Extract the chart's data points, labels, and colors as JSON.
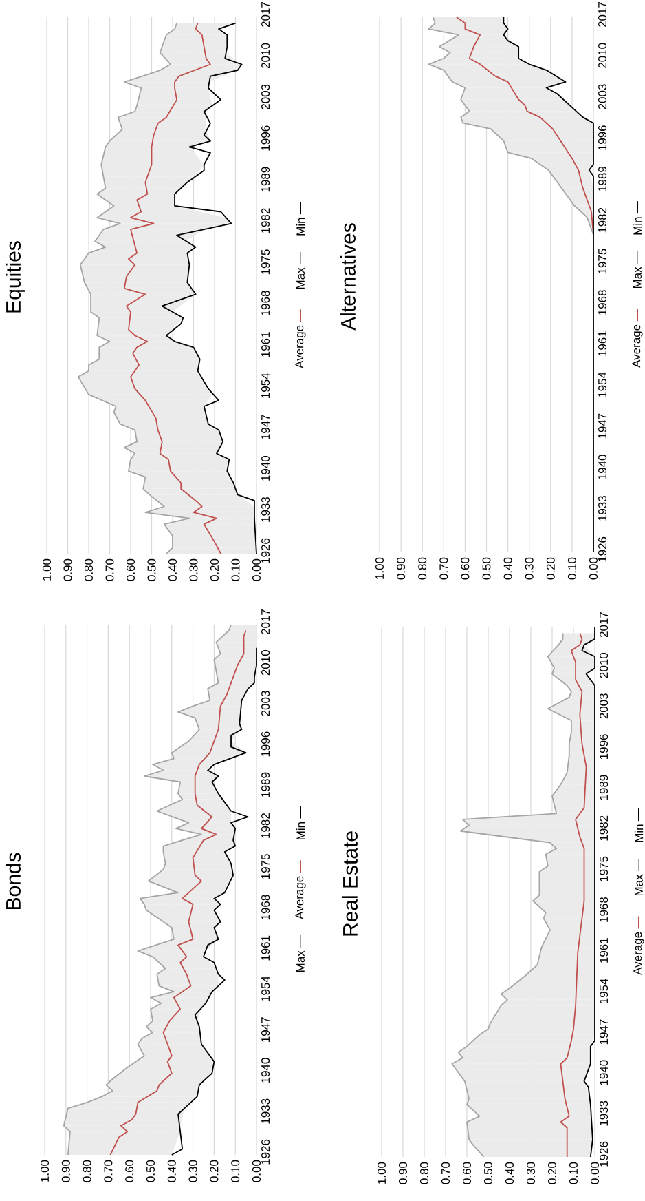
{
  "chart_data": [
    {
      "type": "line",
      "title": "Bonds",
      "orientation": "horizontal",
      "ylim": [
        1926,
        2017
      ],
      "yticks": [
        1926,
        1933,
        1940,
        1947,
        1954,
        1961,
        1968,
        1975,
        1982,
        1989,
        1996,
        2003,
        2010,
        2017
      ],
      "xlim": [
        1,
        0
      ],
      "xticks": [
        {
          "value": 1,
          "label": "1.00"
        },
        {
          "value": 0.9,
          "label": "0.90"
        },
        {
          "value": 0.8,
          "label": "0.80"
        },
        {
          "value": 0.7,
          "label": "0.70"
        },
        {
          "value": 0.6,
          "label": "0.60"
        },
        {
          "value": 0.5,
          "label": "0.50"
        },
        {
          "value": 0.4,
          "label": "0.40"
        },
        {
          "value": 0.3,
          "label": "0.30"
        },
        {
          "value": 0.2,
          "label": "0.20"
        },
        {
          "value": 0.1,
          "label": "0.10"
        },
        {
          "value": 0,
          "label": "0.00"
        }
      ],
      "grid": "x",
      "legend": "right",
      "series": [
        {
          "name": "Max",
          "color": "#a5a5a5",
          "x": [
            1926,
            1930,
            1931,
            1934,
            1935,
            1936,
            1937,
            1938,
            1939,
            1941,
            1943,
            1945,
            1946,
            1947,
            1948,
            1949,
            1951,
            1952,
            1953,
            1954,
            1955,
            1957,
            1958,
            1960,
            1961,
            1963,
            1965,
            1966,
            1968,
            1969,
            1970,
            1971,
            1973,
            1975,
            1976,
            1978,
            1979,
            1981,
            1982,
            1983,
            1985,
            1987,
            1988,
            1990,
            1991,
            1992,
            1993,
            1994,
            1995,
            1997,
            1999,
            2001,
            2002,
            2003,
            2004,
            2006,
            2007,
            2011,
            2012,
            2014,
            2016,
            2017
          ],
          "values": [
            0.89,
            0.88,
            0.91,
            0.89,
            0.8,
            0.73,
            0.68,
            0.71,
            0.68,
            0.61,
            0.53,
            0.56,
            0.54,
            0.49,
            0.52,
            0.49,
            0.5,
            0.45,
            0.5,
            0.39,
            0.46,
            0.47,
            0.43,
            0.49,
            0.56,
            0.39,
            0.4,
            0.44,
            0.52,
            0.53,
            0.55,
            0.37,
            0.51,
            0.44,
            0.43,
            0.44,
            0.44,
            0.26,
            0.38,
            0.32,
            0.47,
            0.35,
            0.37,
            0.36,
            0.53,
            0.44,
            0.49,
            0.39,
            0.4,
            0.32,
            0.27,
            0.29,
            0.37,
            0.3,
            0.22,
            0.23,
            0.18,
            0.2,
            0.17,
            0.19,
            0.13,
            0.12
          ],
          "upper": [
            0.89,
            0.88,
            0.91,
            0.89,
            0.8,
            0.73,
            0.68,
            0.71,
            0.68,
            0.61,
            0.53,
            0.56,
            0.54,
            0.49,
            0.52,
            0.49,
            0.5,
            0.45,
            0.5,
            0.39,
            0.46,
            0.47,
            0.43,
            0.49,
            0.56,
            0.39,
            0.4,
            0.44,
            0.52,
            0.53,
            0.55,
            0.37,
            0.51,
            0.44,
            0.43,
            0.44,
            0.44,
            0.26,
            0.38,
            0.32,
            0.47,
            0.35,
            0.37,
            0.36,
            0.53,
            0.44,
            0.49,
            0.39,
            0.4,
            0.32,
            0.27,
            0.29,
            0.37,
            0.3,
            0.22,
            0.23,
            0.18,
            0.2,
            0.17,
            0.19,
            0.13,
            0.12
          ],
          "lower": [
            0.4,
            0.36,
            0.36,
            0.34,
            0.31,
            0.28,
            0.28,
            0.27,
            0.24,
            0.2,
            0.22,
            0.26,
            0.26,
            0.27,
            0.27,
            0.28,
            0.26,
            0.24,
            0.22,
            0.21,
            0.18,
            0.18,
            0.19,
            0.25,
            0.24,
            0.18,
            0.2,
            0.17,
            0.2,
            0.17,
            0.2,
            0.15,
            0.12,
            0.11,
            0.12,
            0.15,
            0.1,
            0.1,
            0.1,
            0.12,
            0.12,
            0.16,
            0.18,
            0.21,
            0.18,
            0.23,
            0.2,
            0.12,
            0.05,
            0.12,
            0.07,
            0.08,
            0.08,
            0.07,
            0.07,
            0.04,
            0.01,
            0,
            0,
            0,
            0,
            0
          ]
        },
        {
          "name": "Average",
          "color": "#c0504d",
          "x": [
            1926,
            1929,
            1930,
            1931,
            1932,
            1933,
            1935,
            1937,
            1938,
            1940,
            1942,
            1943,
            1945,
            1947,
            1949,
            1951,
            1953,
            1955,
            1957,
            1959,
            1960,
            1962,
            1963,
            1966,
            1969,
            1970,
            1973,
            1974,
            1977,
            1980,
            1981,
            1982,
            1984,
            1986,
            1988,
            1991,
            1993,
            1995,
            1999,
            2003,
            2005,
            2008,
            2010,
            2012,
            2015,
            2016
          ],
          "values": [
            0.69,
            0.65,
            0.61,
            0.64,
            0.59,
            0.57,
            0.56,
            0.47,
            0.46,
            0.4,
            0.42,
            0.4,
            0.42,
            0.44,
            0.41,
            0.36,
            0.39,
            0.31,
            0.33,
            0.36,
            0.33,
            0.37,
            0.3,
            0.32,
            0.3,
            0.35,
            0.26,
            0.29,
            0.3,
            0.25,
            0.19,
            0.26,
            0.21,
            0.28,
            0.29,
            0.29,
            0.27,
            0.22,
            0.18,
            0.17,
            0.14,
            0.11,
            0.09,
            0.06,
            0.06,
            0.05
          ]
        },
        {
          "name": "Min",
          "color": "#000000",
          "x": [
            1926,
            1927,
            1930,
            1933,
            1934,
            1936,
            1938,
            1940,
            1942,
            1945,
            1948,
            1950,
            1952,
            1954,
            1956,
            1957,
            1959,
            1960,
            1962,
            1963,
            1965,
            1966,
            1968,
            1969,
            1970,
            1971,
            1974,
            1976,
            1978,
            1979,
            1980,
            1982,
            1983,
            1984,
            1985,
            1988,
            1990,
            1991,
            1992,
            1993,
            1995,
            1996,
            1998,
            1999,
            2000,
            2004,
            2006,
            2007,
            2008,
            2010,
            2013
          ],
          "values": [
            0.4,
            0.35,
            0.36,
            0.37,
            0.34,
            0.28,
            0.27,
            0.21,
            0.2,
            0.26,
            0.27,
            0.29,
            0.24,
            0.21,
            0.15,
            0.18,
            0.2,
            0.25,
            0.23,
            0.18,
            0.2,
            0.17,
            0.2,
            0.17,
            0.2,
            0.15,
            0.11,
            0.12,
            0.15,
            0.1,
            0.11,
            0.1,
            0.12,
            0.04,
            0.12,
            0.18,
            0.21,
            0.18,
            0.23,
            0.2,
            0.05,
            0.12,
            0.12,
            0.07,
            0.08,
            0.07,
            0.04,
            0.01,
            0.01,
            0,
            0
          ]
        }
      ]
    },
    {
      "type": "line",
      "title": "Equities",
      "orientation": "horizontal",
      "ylim": [
        1926,
        2017
      ],
      "yticks": [
        1926,
        1933,
        1940,
        1947,
        1954,
        1961,
        1968,
        1975,
        1982,
        1989,
        1996,
        2003,
        2010,
        2017
      ],
      "xlim": [
        1,
        0
      ],
      "xticks": [
        {
          "value": 1,
          "label": "1.00"
        },
        {
          "value": 0.9,
          "label": "0.90"
        },
        {
          "value": 0.8,
          "label": "0.80"
        },
        {
          "value": 0.7,
          "label": "0.70"
        },
        {
          "value": 0.6,
          "label": "0.60"
        },
        {
          "value": 0.5,
          "label": "0.50"
        },
        {
          "value": 0.4,
          "label": "0.40"
        },
        {
          "value": 0.3,
          "label": "0.30"
        },
        {
          "value": 0.2,
          "label": "0.20"
        },
        {
          "value": 0.1,
          "label": "0.10"
        },
        {
          "value": 0,
          "label": "0.00"
        }
      ],
      "grid": "x",
      "legend": "right",
      "series": [
        {
          "name": "Average",
          "color": "#c0504d",
          "x": [
            1926,
            1928,
            1931,
            1932,
            1933,
            1934,
            1935,
            1937,
            1938,
            1940,
            1942,
            1943,
            1945,
            1947,
            1949,
            1952,
            1954,
            1956,
            1958,
            1960,
            1961,
            1962,
            1963,
            1964,
            1967,
            1968,
            1970,
            1971,
            1973,
            1975,
            1976,
            1977,
            1981,
            1982,
            1983,
            1984,
            1986,
            1987,
            1989,
            1992,
            1995,
            1997,
            1999,
            2000,
            2003,
            2005,
            2006,
            2007,
            2009,
            2010,
            2012,
            2014,
            2015,
            2016
          ],
          "values": [
            0.17,
            0.2,
            0.25,
            0.19,
            0.3,
            0.26,
            0.29,
            0.36,
            0.36,
            0.41,
            0.42,
            0.46,
            0.45,
            0.47,
            0.48,
            0.53,
            0.58,
            0.6,
            0.56,
            0.59,
            0.57,
            0.52,
            0.58,
            0.61,
            0.6,
            0.62,
            0.53,
            0.63,
            0.62,
            0.58,
            0.61,
            0.57,
            0.6,
            0.49,
            0.6,
            0.55,
            0.57,
            0.52,
            0.53,
            0.5,
            0.5,
            0.49,
            0.47,
            0.43,
            0.38,
            0.39,
            0.39,
            0.37,
            0.22,
            0.24,
            0.25,
            0.26,
            0.29,
            0.28
          ]
        },
        {
          "name": "Max",
          "color": "#a5a5a5",
          "x": [
            1926,
            1927,
            1929,
            1931,
            1932,
            1933,
            1934,
            1936,
            1937,
            1939,
            1940,
            1942,
            1943,
            1944,
            1945,
            1947,
            1948,
            1950,
            1951,
            1953,
            1956,
            1957,
            1958,
            1959,
            1961,
            1962,
            1963,
            1966,
            1967,
            1970,
            1972,
            1975,
            1977,
            1978,
            1979,
            1981,
            1982,
            1983,
            1985,
            1987,
            1988,
            1990,
            1992,
            1995,
            1996,
            1998,
            2000,
            2001,
            2002,
            2005,
            2006,
            2008,
            2009,
            2011,
            2013,
            2014,
            2015,
            2016
          ],
          "values": [
            0.43,
            0.4,
            0.4,
            0.44,
            0.32,
            0.53,
            0.44,
            0.51,
            0.54,
            0.53,
            0.61,
            0.6,
            0.58,
            0.63,
            0.57,
            0.58,
            0.65,
            0.68,
            0.67,
            0.8,
            0.85,
            0.8,
            0.8,
            0.75,
            0.75,
            0.7,
            0.76,
            0.75,
            0.79,
            0.79,
            0.82,
            0.84,
            0.8,
            0.72,
            0.77,
            0.73,
            0.65,
            0.76,
            0.68,
            0.76,
            0.72,
            0.73,
            0.74,
            0.72,
            0.7,
            0.64,
            0.66,
            0.58,
            0.57,
            0.55,
            0.63,
            0.46,
            0.41,
            0.46,
            0.44,
            0.43,
            0.39,
            0.38
          ],
          "upper": [
            0.43,
            0.4,
            0.4,
            0.44,
            0.32,
            0.53,
            0.44,
            0.51,
            0.54,
            0.53,
            0.61,
            0.6,
            0.58,
            0.63,
            0.57,
            0.58,
            0.65,
            0.68,
            0.67,
            0.8,
            0.85,
            0.8,
            0.8,
            0.75,
            0.75,
            0.7,
            0.76,
            0.75,
            0.79,
            0.79,
            0.82,
            0.84,
            0.8,
            0.72,
            0.77,
            0.73,
            0.65,
            0.76,
            0.68,
            0.76,
            0.72,
            0.73,
            0.74,
            0.72,
            0.7,
            0.64,
            0.66,
            0.58,
            0.57,
            0.55,
            0.63,
            0.46,
            0.41,
            0.46,
            0.44,
            0.43,
            0.39,
            0.38
          ],
          "lower": [
            0,
            0,
            0,
            0.01,
            0.01,
            0.01,
            0.01,
            0.09,
            0.1,
            0.13,
            0.14,
            0.13,
            0.19,
            0.18,
            0.16,
            0.18,
            0.23,
            0.24,
            0.25,
            0.21,
            0.26,
            0.28,
            0.28,
            0.27,
            0.3,
            0.39,
            0.43,
            0.35,
            0.4,
            0.29,
            0.33,
            0.32,
            0.33,
            0.29,
            0.34,
            0.25,
            0.12,
            0.15,
            0.39,
            0.39,
            0.36,
            0.29,
            0.25,
            0.32,
            0.22,
            0.24,
            0.24,
            0.25,
            0.21,
            0.23,
            0.23,
            0.09,
            0.07,
            0.15,
            0.14,
            0.14,
            0.18,
            0.1
          ]
        },
        {
          "name": "Min",
          "color": "#000000",
          "x": [
            1926,
            1932,
            1935,
            1936,
            1938,
            1940,
            1942,
            1943,
            1945,
            1947,
            1948,
            1951,
            1952,
            1954,
            1957,
            1959,
            1961,
            1962,
            1963,
            1965,
            1966,
            1968,
            1970,
            1972,
            1975,
            1977,
            1978,
            1980,
            1982,
            1984,
            1985,
            1987,
            1989,
            1991,
            1992,
            1994,
            1995,
            1996,
            1997,
            1999,
            2001,
            2003,
            2005,
            2007,
            2008,
            2009,
            2010,
            2012,
            2014,
            2015,
            2016
          ],
          "values": [
            0,
            0.01,
            0.01,
            0.09,
            0.11,
            0.14,
            0.13,
            0.19,
            0.16,
            0.18,
            0.23,
            0.25,
            0.18,
            0.23,
            0.28,
            0.27,
            0.3,
            0.39,
            0.43,
            0.36,
            0.35,
            0.45,
            0.29,
            0.33,
            0.32,
            0.33,
            0.29,
            0.38,
            0.12,
            0.17,
            0.39,
            0.39,
            0.33,
            0.25,
            0.25,
            0.22,
            0.32,
            0.22,
            0.25,
            0.22,
            0.25,
            0.17,
            0.23,
            0.22,
            0.09,
            0.07,
            0.15,
            0.14,
            0.14,
            0.18,
            0.1
          ]
        }
      ]
    },
    {
      "type": "line",
      "title": "Real Estate",
      "orientation": "horizontal",
      "ylim": [
        1926,
        2017
      ],
      "yticks": [
        1926,
        1933,
        1940,
        1947,
        1954,
        1961,
        1968,
        1975,
        1982,
        1989,
        1996,
        2003,
        2010,
        2017
      ],
      "xlim": [
        1,
        0
      ],
      "xticks": [
        {
          "value": 1,
          "label": "1.00"
        },
        {
          "value": 0.9,
          "label": "0.90"
        },
        {
          "value": 0.8,
          "label": "0.80"
        },
        {
          "value": 0.7,
          "label": "0.70"
        },
        {
          "value": 0.6,
          "label": "0.60"
        },
        {
          "value": 0.5,
          "label": "0.50"
        },
        {
          "value": 0.4,
          "label": "0.40"
        },
        {
          "value": 0.3,
          "label": "0.30"
        },
        {
          "value": 0.2,
          "label": "0.20"
        },
        {
          "value": 0.1,
          "label": "0.10"
        },
        {
          "value": 0,
          "label": "0.00"
        }
      ],
      "grid": "x",
      "legend": "right",
      "series": [
        {
          "name": "Average",
          "color": "#c0504d",
          "x": [
            1926,
            1931,
            1932,
            1933,
            1936,
            1939,
            1942,
            1943,
            1946,
            1948,
            1952,
            1961,
            1970,
            1979,
            1981,
            1984,
            1986,
            1993,
            1997,
            2002,
            2006,
            2008,
            2011,
            2013,
            2014,
            2015,
            2016
          ],
          "values": [
            0.13,
            0.13,
            0.16,
            0.12,
            0.14,
            0.15,
            0.16,
            0.13,
            0.11,
            0.1,
            0.09,
            0.08,
            0.05,
            0.05,
            0.07,
            0.09,
            0.05,
            0.04,
            0.06,
            0.07,
            0.06,
            0.09,
            0.09,
            0.11,
            0.07,
            0.06,
            0.07
          ]
        },
        {
          "name": "Max",
          "color": "#a5a5a5",
          "x": [
            1926,
            1928,
            1929,
            1932,
            1933,
            1935,
            1936,
            1939,
            1941,
            1942,
            1943,
            1944,
            1945,
            1947,
            1948,
            1949,
            1952,
            1953,
            1954,
            1955,
            1957,
            1959,
            1962,
            1965,
            1967,
            1968,
            1970,
            1971,
            1975,
            1976,
            1978,
            1979,
            1980,
            1982,
            1983,
            1984,
            1985,
            1988,
            1990,
            1992,
            1995,
            1997,
            1999,
            2001,
            2003,
            2005,
            2006,
            2007,
            2009,
            2010,
            2012,
            2014,
            2015,
            2016
          ],
          "values": [
            0.52,
            0.57,
            0.59,
            0.6,
            0.54,
            0.6,
            0.59,
            0.61,
            0.65,
            0.67,
            0.62,
            0.64,
            0.6,
            0.54,
            0.5,
            0.49,
            0.44,
            0.41,
            0.44,
            0.4,
            0.33,
            0.27,
            0.25,
            0.21,
            0.24,
            0.23,
            0.29,
            0.26,
            0.26,
            0.22,
            0.23,
            0.18,
            0.21,
            0.63,
            0.59,
            0.62,
            0.18,
            0.2,
            0.16,
            0.13,
            0.12,
            0.12,
            0.11,
            0.11,
            0.22,
            0.12,
            0.11,
            0.13,
            0.2,
            0.19,
            0.22,
            0.17,
            0.15,
            0.15
          ],
          "upper": [
            0.52,
            0.57,
            0.59,
            0.6,
            0.54,
            0.6,
            0.59,
            0.61,
            0.65,
            0.67,
            0.62,
            0.64,
            0.6,
            0.54,
            0.5,
            0.49,
            0.44,
            0.41,
            0.44,
            0.4,
            0.33,
            0.27,
            0.25,
            0.21,
            0.24,
            0.23,
            0.29,
            0.26,
            0.26,
            0.22,
            0.23,
            0.18,
            0.21,
            0.63,
            0.59,
            0.62,
            0.18,
            0.2,
            0.16,
            0.13,
            0.12,
            0.12,
            0.11,
            0.11,
            0.22,
            0.12,
            0.11,
            0.13,
            0.2,
            0.19,
            0.22,
            0.17,
            0.15,
            0.15
          ],
          "lower": [
            0.02,
            0.01,
            0.01,
            0.02,
            0.02,
            0.02,
            0.02,
            0.05,
            0.03,
            0.02,
            0.02,
            0.02,
            0.02,
            0,
            0,
            0,
            0,
            0,
            0,
            0,
            0,
            0,
            0,
            0,
            0,
            0,
            0,
            0,
            0,
            0,
            0,
            0,
            0,
            0,
            0,
            0,
            0,
            0,
            0,
            0,
            0,
            0,
            0,
            0,
            0,
            0,
            0,
            0,
            0.04,
            0,
            0,
            0.05,
            0,
            0
          ]
        },
        {
          "name": "Min",
          "color": "#000000",
          "x": [
            1926,
            1929,
            1935,
            1938,
            1939,
            1942,
            1945,
            1946,
            2007,
            2009,
            2010,
            2012,
            2013,
            2014,
            2015,
            2017
          ],
          "values": [
            0.02,
            0.01,
            0.02,
            0.03,
            0.05,
            0.02,
            0.02,
            0,
            0,
            0.04,
            0,
            0,
            0.06,
            0.05,
            0,
            0
          ]
        }
      ]
    },
    {
      "type": "line",
      "title": "Alternatives",
      "orientation": "horizontal",
      "ylim": [
        1926,
        2017
      ],
      "yticks": [
        1926,
        1933,
        1940,
        1947,
        1954,
        1961,
        1968,
        1975,
        1982,
        1989,
        1996,
        2003,
        2010,
        2017
      ],
      "xlim": [
        1,
        0
      ],
      "xticks": [
        {
          "value": 1,
          "label": "1.00"
        },
        {
          "value": 0.9,
          "label": "0.90"
        },
        {
          "value": 0.8,
          "label": "0.80"
        },
        {
          "value": 0.7,
          "label": "0.70"
        },
        {
          "value": 0.6,
          "label": "0.60"
        },
        {
          "value": 0.5,
          "label": "0.50"
        },
        {
          "value": 0.4,
          "label": "0.40"
        },
        {
          "value": 0.3,
          "label": "0.30"
        },
        {
          "value": 0.2,
          "label": "0.20"
        },
        {
          "value": 0.1,
          "label": "0.10"
        },
        {
          "value": 0,
          "label": "0.00"
        }
      ],
      "grid": "x",
      "legend": "right",
      "series": [
        {
          "name": "Average",
          "color": "#c0504d",
          "x": [
            1980,
            1984,
            1988,
            1991,
            1993,
            1998,
            2000,
            2001,
            2002,
            2003,
            2006,
            2007,
            2009,
            2010,
            2012,
            2014,
            2015,
            2016,
            2017
          ],
          "values": [
            0,
            0.01,
            0.05,
            0.07,
            0.1,
            0.19,
            0.25,
            0.31,
            0.32,
            0.35,
            0.4,
            0.46,
            0.53,
            0.58,
            0.56,
            0.53,
            0.6,
            0.6,
            0.64
          ]
        },
        {
          "name": "Max",
          "color": "#a5a5a5",
          "x": [
            1980,
            1983,
            1985,
            1988,
            1991,
            1993,
            1994,
            1996,
            1998,
            1999,
            2000,
            2001,
            2003,
            2005,
            2006,
            2008,
            2009,
            2010,
            2011,
            2012,
            2014,
            2015,
            2016,
            2017
          ],
          "values": [
            0,
            0.03,
            0.09,
            0.15,
            0.21,
            0.29,
            0.4,
            0.42,
            0.48,
            0.61,
            0.62,
            0.58,
            0.62,
            0.6,
            0.66,
            0.7,
            0.77,
            0.7,
            0.67,
            0.72,
            0.63,
            0.77,
            0.74,
            0.75
          ],
          "upper": [
            0,
            0.03,
            0.09,
            0.15,
            0.21,
            0.29,
            0.4,
            0.42,
            0.48,
            0.61,
            0.62,
            0.58,
            0.62,
            0.6,
            0.66,
            0.7,
            0.77,
            0.7,
            0.67,
            0.72,
            0.63,
            0.77,
            0.74,
            0.75
          ],
          "lower": [
            0,
            0,
            0,
            0,
            0.02,
            0,
            0,
            0,
            0,
            0,
            0.05,
            0.08,
            0.14,
            0.22,
            0.13,
            0.22,
            0.3,
            0.35,
            0.35,
            0.35,
            0.42,
            0.4,
            0.42,
            0.42
          ]
        },
        {
          "name": "Min",
          "color": "#000000",
          "x": [
            1926,
            1990,
            1991,
            1992,
            1999,
            2000,
            2002,
            2004,
            2005,
            2006,
            2008,
            2009,
            2010,
            2012,
            2013,
            2014,
            2015,
            2016,
            2017
          ],
          "values": [
            0,
            0,
            0.02,
            0,
            0,
            0.05,
            0.11,
            0.17,
            0.22,
            0.13,
            0.22,
            0.3,
            0.35,
            0.35,
            0.4,
            0.42,
            0.4,
            0.42,
            0.42
          ]
        }
      ]
    }
  ]
}
